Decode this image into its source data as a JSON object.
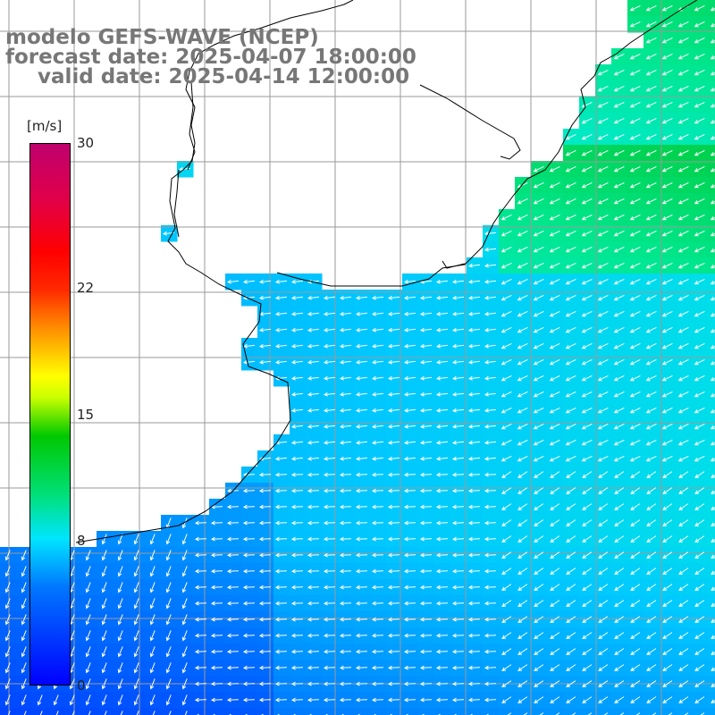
{
  "title": {
    "model": "modelo GEFS-WAVE (NCEP)",
    "forecast": "forecast date: 2025-04-07 18:00:00",
    "valid": "valid date: 2025-04-14 12:00:00"
  },
  "colorbar": {
    "unit": "[m/s]",
    "min": 0,
    "max": 30,
    "ticks": [
      {
        "label": "30",
        "value": 30
      },
      {
        "label": "22",
        "value": 22
      },
      {
        "label": "15",
        "value": 15
      },
      {
        "label": "8",
        "value": 8
      },
      {
        "label": "0",
        "value": 0
      }
    ],
    "colors": [
      "#0000ff",
      "#0077ff",
      "#00e5ff",
      "#00e07a",
      "#00c800",
      "#ffff00",
      "#ff8c00",
      "#ff0000",
      "#c0006e"
    ]
  },
  "map": {
    "land_color": "#ffffff",
    "coastline_color": "#000000",
    "grid_color": "#9a9a9a",
    "arrow_color": "#ffffff"
  }
}
